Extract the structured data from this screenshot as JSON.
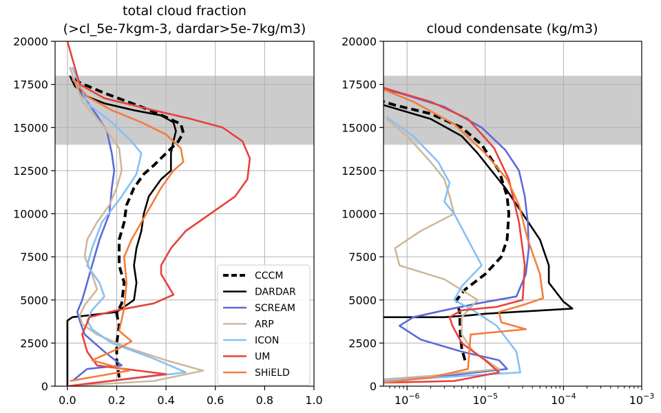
{
  "chart_data": [
    {
      "type": "line",
      "title_line1": "total cloud fraction",
      "title_line2": "(>cl_5e-7kgm-3, dardar>5e-7kg/m3)",
      "xlabel": "",
      "ylabel": "",
      "xlim": [
        -0.05,
        1.0
      ],
      "ylim": [
        0,
        20000
      ],
      "xscale": "linear",
      "xticks": [
        0.0,
        0.2,
        0.4,
        0.6,
        0.8,
        1.0
      ],
      "xtick_labels": [
        "0.0",
        "0.2",
        "0.4",
        "0.6",
        "0.8",
        "1.0"
      ],
      "yticks": [
        0,
        2500,
        5000,
        7500,
        10000,
        12500,
        15000,
        17500,
        20000
      ],
      "ytick_labels": [
        "0",
        "2500",
        "5000",
        "7500",
        "10000",
        "12500",
        "15000",
        "17500",
        "20000"
      ],
      "grid": true,
      "shaded_band": {
        "y": [
          14000,
          18000
        ],
        "color": "#cccccc"
      },
      "legend": {
        "placement": "bottom-right"
      },
      "series": [
        {
          "name": "CCCM",
          "color": "#000000",
          "dashed": true,
          "x": [
            0.21,
            0.2,
            0.2,
            0.21,
            0.2,
            0.22,
            0.23,
            0.21,
            0.21,
            0.23,
            0.24,
            0.27,
            0.31,
            0.35,
            0.4,
            0.45,
            0.47,
            0.46,
            0.4,
            0.3,
            0.15,
            0.05,
            0.02
          ],
          "y": [
            500,
            1500,
            2500,
            3500,
            4200,
            4800,
            6000,
            7000,
            8500,
            9500,
            10500,
            11500,
            12300,
            12800,
            13500,
            14200,
            14700,
            15200,
            15600,
            16200,
            17000,
            17600,
            18000
          ]
        },
        {
          "name": "DARDAR",
          "color": "#000000",
          "x": [
            0.0,
            0.0,
            0.0,
            0.02,
            0.2,
            0.27,
            0.28,
            0.27,
            0.28,
            0.3,
            0.31,
            0.33,
            0.38,
            0.42,
            0.42,
            0.43,
            0.44,
            0.43,
            0.38,
            0.27,
            0.15,
            0.08,
            0.03,
            0.01
          ],
          "y": [
            0,
            2000,
            3800,
            4000,
            4300,
            5000,
            6000,
            7000,
            8000,
            9000,
            10000,
            11000,
            12000,
            12500,
            13500,
            14200,
            14800,
            15300,
            15700,
            16000,
            16400,
            16800,
            17400,
            18000
          ]
        },
        {
          "name": "SCREAM",
          "color": "#5a69d8",
          "x": [
            0.02,
            0.08,
            0.22,
            0.15,
            0.07,
            0.05,
            0.04,
            0.06,
            0.09,
            0.11,
            0.13,
            0.17,
            0.18,
            0.19,
            0.18,
            0.16,
            0.12,
            0.08,
            0.04,
            0.01
          ],
          "y": [
            300,
            1000,
            1200,
            2000,
            3000,
            3800,
            4300,
            5000,
            6500,
            7500,
            8500,
            10000,
            11500,
            12500,
            13500,
            14800,
            15700,
            16500,
            17300,
            18500
          ]
        },
        {
          "name": "ARP",
          "color": "#cdb89a",
          "x": [
            0.0,
            0.35,
            0.55,
            0.4,
            0.25,
            0.12,
            0.06,
            0.05,
            0.07,
            0.12,
            0.1,
            0.07,
            0.08,
            0.12,
            0.17,
            0.2,
            0.22,
            0.21,
            0.14,
            0.06,
            0.01
          ],
          "y": [
            0,
            300,
            900,
            1500,
            2200,
            3000,
            3600,
            4100,
            4700,
            5600,
            6500,
            7500,
            8500,
            9500,
            10500,
            11500,
            12500,
            13800,
            15200,
            16500,
            18500
          ]
        },
        {
          "name": "ICON",
          "color": "#86bff5",
          "x": [
            0.0,
            0.48,
            0.35,
            0.18,
            0.1,
            0.08,
            0.1,
            0.15,
            0.13,
            0.08,
            0.1,
            0.14,
            0.22,
            0.28,
            0.3,
            0.26,
            0.18,
            0.08,
            0.02
          ],
          "y": [
            0,
            800,
            1600,
            2500,
            3300,
            3800,
            4400,
            5200,
            6000,
            7000,
            8000,
            9500,
            11000,
            12300,
            13500,
            14200,
            15300,
            16400,
            18500
          ]
        },
        {
          "name": "UM",
          "color": "#e8413a",
          "x": [
            0.0,
            0.4,
            0.12,
            0.08,
            0.06,
            0.09,
            0.2,
            0.35,
            0.43,
            0.38,
            0.38,
            0.42,
            0.48,
            0.58,
            0.68,
            0.73,
            0.74,
            0.71,
            0.63,
            0.5,
            0.35,
            0.15,
            0.05,
            0.0
          ],
          "y": [
            0,
            700,
            1200,
            2000,
            3000,
            4000,
            4400,
            4800,
            5300,
            6500,
            7000,
            8000,
            9000,
            10000,
            11000,
            12000,
            13200,
            14200,
            15000,
            15500,
            16000,
            16700,
            17500,
            20000
          ]
        },
        {
          "name": "SHiELD",
          "color": "#f57c3a",
          "x": [
            0.01,
            0.25,
            0.1,
            0.21,
            0.26,
            0.21,
            0.23,
            0.24,
            0.23,
            0.26,
            0.3,
            0.34,
            0.38,
            0.43,
            0.47,
            0.46,
            0.4,
            0.3,
            0.18,
            0.08,
            0.02
          ],
          "y": [
            300,
            900,
            1500,
            2200,
            2600,
            3200,
            4500,
            6000,
            7500,
            8500,
            9500,
            10500,
            11500,
            12500,
            13000,
            13800,
            14600,
            15300,
            16000,
            16800,
            17800
          ]
        }
      ]
    },
    {
      "type": "line",
      "title": "cloud condensate (kg/m3)",
      "xlabel": "",
      "ylabel": "",
      "xscale": "log",
      "xlim": [
        5e-07,
        0.001
      ],
      "ylim": [
        0,
        20000
      ],
      "xticks": [
        1e-06,
        1e-05,
        0.0001,
        0.001
      ],
      "xtick_labels": [
        "10^-6",
        "10^-5",
        "10^-4",
        "10^-3"
      ],
      "yticks": [
        0,
        2500,
        5000,
        7500,
        10000,
        12500,
        15000,
        17500,
        20000
      ],
      "ytick_labels": [
        "0",
        "2500",
        "5000",
        "7500",
        "10000",
        "12500",
        "15000",
        "17500",
        "20000"
      ],
      "grid": true,
      "shaded_band": {
        "y": [
          14000,
          18000
        ],
        "color": "#cccccc"
      },
      "series": [
        {
          "name": "CCCM",
          "color": "#000000",
          "dashed": true,
          "x": [
            5.5e-06,
            5e-06,
            4.8e-06,
            4.7e-06,
            4.3e-06,
            5.5e-06,
            1e-05,
            1.6e-05,
            1.9e-05,
            2e-05,
            1.9e-05,
            1.5e-05,
            9e-06,
            5e-06,
            2e-06,
            7e-07,
            5e-07
          ],
          "y": [
            1500,
            2200,
            3000,
            4300,
            5000,
            5600,
            6500,
            7500,
            8500,
            10000,
            11000,
            12500,
            14000,
            15000,
            15800,
            16300,
            16500
          ]
        },
        {
          "name": "DARDAR",
          "color": "#000000",
          "x": [
            5e-07,
            3e-06,
            6e-06,
            1e-05,
            0.00013,
            0.0001,
            6.5e-05,
            6.5e-05,
            5e-05,
            3e-05,
            1.8e-05,
            1.2e-05,
            8e-06,
            5e-06,
            2e-06,
            6e-07,
            5e-07
          ],
          "y": [
            4000,
            4000,
            4100,
            4200,
            4500,
            4900,
            6000,
            7000,
            8500,
            10000,
            11500,
            12500,
            13500,
            14500,
            15500,
            16200,
            16300
          ]
        },
        {
          "name": "SCREAM",
          "color": "#5a69d8",
          "x": [
            5e-07,
            1e-06,
            2e-06,
            1.9e-05,
            1.5e-05,
            5e-06,
            1.5e-06,
            8e-07,
            1.2e-06,
            3e-06,
            8e-06,
            2.5e-05,
            3.3e-05,
            3.6e-05,
            3.5e-05,
            3.2e-05,
            2.7e-05,
            1.8e-05,
            9e-06,
            3e-06,
            8e-07,
            5e-07
          ],
          "y": [
            300,
            400,
            500,
            1000,
            1500,
            2000,
            2700,
            3500,
            4000,
            4400,
            4800,
            5200,
            6500,
            8000,
            9500,
            11000,
            12500,
            13700,
            15000,
            16200,
            17000,
            17200
          ]
        },
        {
          "name": "ARP",
          "color": "#cdb89a",
          "x": [
            5e-07,
            2e-06,
            1.5e-05,
            7e-06,
            5e-06,
            5e-06,
            8e-06,
            3e-06,
            8e-07,
            7e-07,
            1.5e-06,
            4e-06,
            3.5e-06,
            3e-06,
            2e-06,
            1e-06,
            5.5e-07
          ],
          "y": [
            400,
            600,
            1000,
            2000,
            3000,
            4000,
            5000,
            6200,
            7000,
            8000,
            9000,
            10000,
            11000,
            12000,
            13000,
            14500,
            15500
          ]
        },
        {
          "name": "ICON",
          "color": "#86bff5",
          "x": [
            5e-07,
            2.8e-05,
            2.5e-05,
            1.4e-05,
            7e-06,
            4e-06,
            5e-06,
            9e-06,
            6e-06,
            4e-06,
            3e-06,
            3.5e-06,
            2.5e-06,
            1.2e-06,
            5.5e-07
          ],
          "y": [
            300,
            800,
            2000,
            3500,
            4400,
            5000,
            5800,
            7000,
            8500,
            10000,
            10700,
            11800,
            13000,
            14500,
            15600
          ]
        },
        {
          "name": "UM",
          "color": "#e8413a",
          "x": [
            5e-07,
            4e-06,
            1.5e-05,
            1e-05,
            5e-06,
            3.8e-06,
            3.5e-06,
            5e-06,
            1.4e-05,
            3e-05,
            3.2e-05,
            2.7e-05,
            2e-05,
            1.3e-05,
            6e-06,
            2e-06,
            5e-07
          ],
          "y": [
            200,
            300,
            800,
            1500,
            2500,
            3500,
            4000,
            4400,
            4600,
            5000,
            7000,
            9500,
            12000,
            13800,
            15500,
            16500,
            17300
          ]
        },
        {
          "name": "SHiELD",
          "color": "#f57c3a",
          "x": [
            5e-07,
            2e-06,
            6e-06,
            6.5e-06,
            3.3e-05,
            1.6e-05,
            1.5e-05,
            3e-05,
            5.5e-05,
            5e-05,
            3.5e-05,
            2.7e-05,
            1.9e-05,
            1e-05,
            4e-06,
            1.2e-06,
            5e-07
          ],
          "y": [
            200,
            500,
            1000,
            3000,
            3300,
            3700,
            4300,
            4700,
            5100,
            6500,
            8500,
            10500,
            12000,
            13500,
            15200,
            16500,
            17200
          ]
        }
      ]
    }
  ]
}
